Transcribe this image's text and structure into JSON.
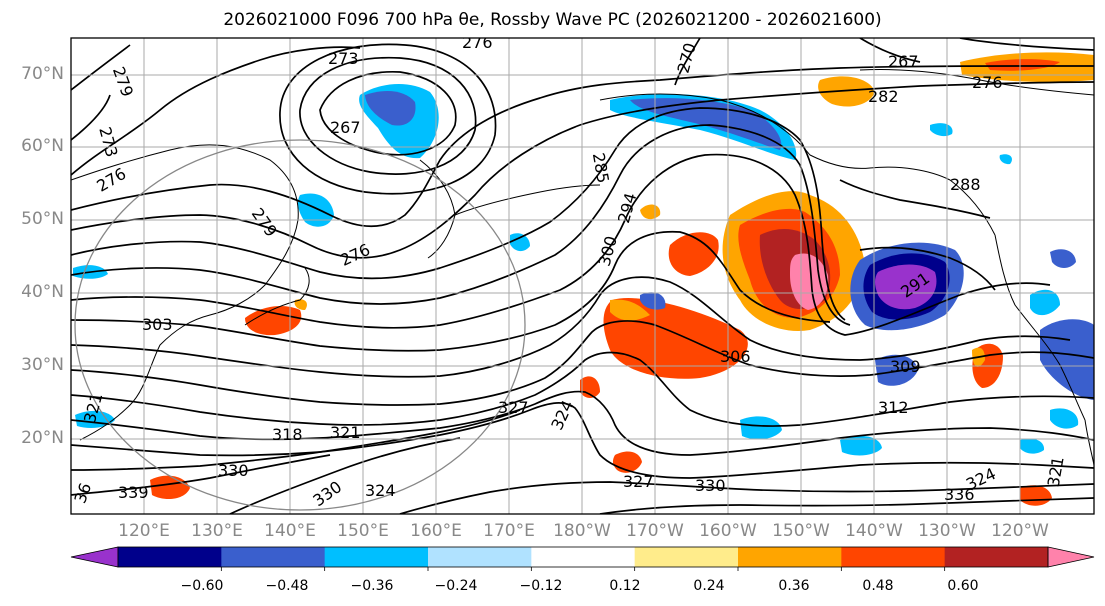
{
  "title": "2026021000 F096 700 hPa θe, Rossby Wave PC (2026021200 - 2026021600)",
  "lat_labels": [
    "70°N",
    "60°N",
    "50°N",
    "40°N",
    "30°N",
    "20°N"
  ],
  "lon_labels": [
    "120°E",
    "130°E",
    "140°E",
    "150°E",
    "160°E",
    "170°E",
    "180°W",
    "170°W",
    "160°W",
    "150°W",
    "140°W",
    "130°W",
    "120°W"
  ],
  "colorbar": {
    "ticks": [
      "−0.60",
      "−0.48",
      "−0.36",
      "−0.24",
      "−0.12",
      "0.12",
      "0.24",
      "0.36",
      "0.48",
      "0.60"
    ],
    "colors": [
      "#9932cc",
      "#00008b",
      "#3a5fcd",
      "#00bfff",
      "#b0e2ff",
      "#ffffff",
      "#ffec8b",
      "#ffa500",
      "#ff4500",
      "#b22222",
      "#ff82ab"
    ]
  },
  "contour_labels": [
    "279",
    "273",
    "276",
    "273",
    "267",
    "276",
    "270",
    "267",
    "276",
    "282",
    "285",
    "294",
    "300",
    "288",
    "279",
    "276",
    "291",
    "303",
    "306",
    "309",
    "312",
    "321",
    "327",
    "324",
    "318",
    "321",
    "330",
    "339",
    "330",
    "327",
    "330",
    "324",
    "336",
    "324",
    "321",
    "36"
  ],
  "colors": {
    "contour": "#000000",
    "grid": "#aaaaaa",
    "coast": "#000000",
    "axis_label": "#888888"
  }
}
